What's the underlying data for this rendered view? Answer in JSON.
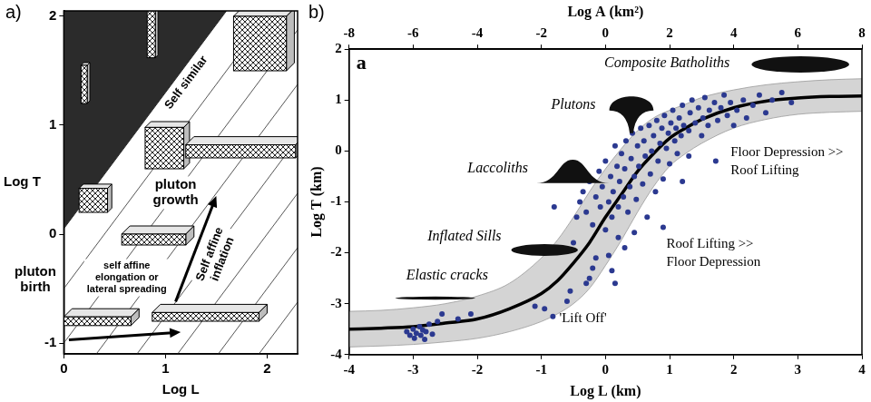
{
  "chart_data": [
    {
      "type": "line",
      "panel_label": "a)",
      "x_label": "Log L",
      "y_label": "Log T",
      "xlim": [
        0,
        2.3
      ],
      "xticks": [
        0,
        1,
        2
      ],
      "ylim": [
        -1.1,
        2.05
      ],
      "yticks": [
        -1,
        0,
        1,
        2
      ],
      "grid": false,
      "region": {
        "label": "Self similar",
        "color": "#2b2b2b",
        "boundary": {
          "x": [
            0,
            1.6
          ],
          "y": [
            0.05,
            2.05
          ]
        }
      },
      "hatch_lines": {
        "color": "#555555",
        "lines": [
          {
            "x": [
              0,
              2.3
            ],
            "y": [
              -0.5,
              2.375
            ]
          },
          {
            "x": [
              0,
              2.3
            ],
            "y": [
              -1.0,
              1.875
            ]
          },
          {
            "x": [
              0,
              2.3
            ],
            "y": [
              -1.5,
              1.375
            ]
          },
          {
            "x": [
              0,
              2.3
            ],
            "y": [
              -2.0,
              0.875
            ]
          },
          {
            "x": [
              0,
              2.3
            ],
            "y": [
              -2.5,
              0.375
            ]
          },
          {
            "x": [
              0,
              2.3
            ],
            "y": [
              -3.0,
              -0.125
            ]
          },
          {
            "x": [
              0,
              2.3
            ],
            "y": [
              -3.5,
              -0.625
            ]
          }
        ]
      },
      "boxes": [
        {
          "x": [
            0.82,
            0.9
          ],
          "y": [
            1.62,
            2.05
          ]
        },
        {
          "x": [
            0.17,
            0.23
          ],
          "y": [
            1.2,
            1.55
          ]
        },
        {
          "x": [
            1.67,
            2.19
          ],
          "y": [
            1.5,
            2.0
          ]
        },
        {
          "x": [
            0.8,
            1.18
          ],
          "y": [
            0.6,
            0.98
          ]
        },
        {
          "x": [
            0.15,
            0.43
          ],
          "y": [
            0.2,
            0.42
          ]
        },
        {
          "x": [
            1.2,
            2.28
          ],
          "y": [
            0.7,
            0.82
          ]
        },
        {
          "x": [
            0.57,
            1.2
          ],
          "y": [
            -0.1,
            0.0
          ]
        },
        {
          "x": [
            0.87,
            1.92
          ],
          "y": [
            -0.8,
            -0.72
          ]
        },
        {
          "x": [
            0.0,
            0.66
          ],
          "y": [
            -0.84,
            -0.76
          ]
        }
      ],
      "arrows": [
        {
          "from": [
            0.05,
            -0.97
          ],
          "to": [
            1.15,
            -0.9
          ]
        },
        {
          "from": [
            1.1,
            -0.62
          ],
          "to": [
            1.5,
            0.35
          ],
          "label": "Self affine\ninflation"
        }
      ],
      "stage_labels": [
        {
          "text": "pluton\nbirth",
          "x": -0.28,
          "y": -0.42
        },
        {
          "text": "pluton\ngrowth",
          "x": 1.1,
          "y": 0.38
        }
      ],
      "annotations": [
        {
          "text": "self affine\nelongation or\nlateral spreading",
          "x": 0.62,
          "y": -0.4
        }
      ]
    },
    {
      "type": "scatter",
      "panel_label": "b)",
      "inner_label": "a",
      "x_label": "Log L (km)",
      "y_label": "Log T (km)",
      "x2_label": "Log A (km²)",
      "xlim": [
        -4,
        4
      ],
      "xticks": [
        -4,
        -3,
        -2,
        -1,
        0,
        1,
        2,
        3,
        4
      ],
      "x2lim": [
        -8,
        8
      ],
      "x2ticks": [
        -8,
        -6,
        -4,
        -2,
        0,
        2,
        4,
        6,
        8
      ],
      "ylim": [
        -4,
        2
      ],
      "yticks": [
        -4,
        -3,
        -2,
        -1,
        0,
        1,
        2
      ],
      "grid": false,
      "curve": {
        "color": "#000000",
        "x": [
          -4,
          -3.5,
          -3,
          -2.5,
          -2,
          -1.5,
          -1,
          -0.75,
          -0.5,
          -0.25,
          0,
          0.25,
          0.5,
          0.75,
          1,
          1.25,
          1.5,
          2,
          2.5,
          3,
          3.5,
          4
        ],
        "y": [
          -3.5,
          -3.48,
          -3.45,
          -3.38,
          -3.3,
          -3.1,
          -2.8,
          -2.55,
          -2.2,
          -1.8,
          -1.3,
          -0.85,
          -0.4,
          -0.05,
          0.25,
          0.45,
          0.62,
          0.85,
          0.98,
          1.04,
          1.07,
          1.08
        ]
      },
      "band": {
        "color": "#d4d4d4",
        "x": [
          -4,
          -3.5,
          -3,
          -2.5,
          -2,
          -1.5,
          -1,
          -0.75,
          -0.5,
          -0.25,
          0,
          0.25,
          0.5,
          0.75,
          1,
          1.25,
          1.5,
          2,
          2.5,
          3,
          3.5,
          4
        ],
        "upper": [
          -3.15,
          -3.13,
          -3.08,
          -3.0,
          -2.85,
          -2.6,
          -2.1,
          -1.75,
          -1.3,
          -0.8,
          -0.35,
          0.05,
          0.4,
          0.65,
          0.8,
          0.92,
          1.05,
          1.2,
          1.3,
          1.36,
          1.4,
          1.42
        ],
        "lower": [
          -3.85,
          -3.83,
          -3.8,
          -3.75,
          -3.68,
          -3.55,
          -3.35,
          -3.2,
          -3.0,
          -2.7,
          -2.25,
          -1.75,
          -1.2,
          -0.7,
          -0.3,
          -0.05,
          0.15,
          0.45,
          0.62,
          0.72,
          0.76,
          0.78
        ]
      },
      "points": {
        "color": "#2b3990",
        "x": [
          -3.1,
          -3.05,
          -3.0,
          -2.98,
          -2.95,
          -2.9,
          -2.88,
          -2.85,
          -2.82,
          -2.8,
          -2.75,
          -2.7,
          -2.62,
          -2.55,
          -2.3,
          -2.1,
          -1.1,
          -0.95,
          -0.82,
          -0.6,
          -0.55,
          -0.3,
          -0.25,
          -0.2,
          0.05,
          0.1,
          0.15,
          0.2,
          0.3,
          -0.8,
          -0.5,
          -0.45,
          -0.4,
          -0.35,
          -0.3,
          -0.25,
          -0.2,
          -0.15,
          -0.1,
          -0.08,
          -0.05,
          0,
          0,
          0.05,
          0.08,
          0.1,
          0.12,
          0.15,
          0.18,
          0.2,
          0.22,
          0.25,
          0.28,
          0.3,
          0.32,
          0.35,
          0.38,
          0.4,
          0.42,
          0.45,
          0.48,
          0.5,
          0.52,
          0.55,
          0.58,
          0.6,
          0.62,
          0.65,
          0.68,
          0.7,
          0.72,
          0.75,
          0.78,
          0.8,
          0.82,
          0.85,
          0.88,
          0.9,
          0.92,
          0.95,
          0.98,
          1.0,
          1.02,
          1.05,
          1.08,
          1.1,
          1.12,
          1.15,
          1.18,
          1.2,
          1.22,
          1.3,
          1.32,
          1.35,
          1.4,
          1.45,
          1.5,
          1.52,
          1.55,
          1.6,
          1.62,
          1.7,
          1.72,
          1.75,
          1.8,
          1.85,
          1.9,
          1.95,
          2.0,
          2.05,
          2.15,
          2.2,
          2.3,
          2.4,
          2.5,
          2.6,
          2.75,
          2.9,
          1.2,
          1.3,
          0.9,
          0.45,
          -0.15
        ],
        "y": [
          -3.55,
          -3.62,
          -3.5,
          -3.68,
          -3.58,
          -3.45,
          -3.62,
          -3.52,
          -3.7,
          -3.55,
          -3.4,
          -3.6,
          -3.35,
          -3.2,
          -3.3,
          -3.2,
          -3.05,
          -3.1,
          -3.25,
          -2.95,
          -2.75,
          -2.6,
          -2.5,
          -2.3,
          -2.05,
          -2.35,
          -2.6,
          -1.7,
          -1.9,
          -1.1,
          -1.8,
          -1.3,
          -1.0,
          -0.8,
          -1.2,
          -0.6,
          -1.45,
          -0.9,
          -0.4,
          -1.1,
          -0.7,
          -1.55,
          -0.2,
          -1.0,
          -0.5,
          -1.3,
          -0.8,
          0.1,
          -0.3,
          -1.1,
          -0.6,
          -0.05,
          -0.9,
          -0.35,
          0.2,
          -1.2,
          -0.7,
          -0.15,
          0.35,
          -0.5,
          -0.95,
          0.1,
          -0.3,
          0.45,
          -0.65,
          0.2,
          -0.1,
          -1.3,
          0.5,
          -0.45,
          0.0,
          0.3,
          -0.8,
          0.6,
          -0.2,
          0.15,
          0.45,
          -0.55,
          0.7,
          0.05,
          0.35,
          -0.25,
          0.55,
          0.8,
          0.2,
          0.45,
          -0.05,
          0.65,
          0.3,
          0.9,
          0.5,
          0.4,
          0.75,
          1.0,
          0.55,
          0.85,
          0.3,
          0.65,
          1.05,
          0.5,
          0.8,
          0.95,
          -0.2,
          0.6,
          0.85,
          1.1,
          0.7,
          0.95,
          0.5,
          0.8,
          1.0,
          0.65,
          0.9,
          1.1,
          0.75,
          1.0,
          1.15,
          0.95,
          -0.6,
          -0.1,
          -1.5,
          -1.6,
          -2.1
        ]
      },
      "shapes": [
        {
          "kind": "ellipse",
          "label": "Composite Batholiths",
          "label_at": [
            0.96,
            1.72
          ],
          "x": [
            2.28,
            3.8
          ],
          "y": [
            1.54,
            1.86
          ]
        },
        {
          "kind": "mushroom",
          "label": "Plutons",
          "label_at": [
            -0.5,
            0.9
          ],
          "x": [
            0.06,
            0.75
          ],
          "y": [
            0.35,
            1.09
          ]
        },
        {
          "kind": "dome",
          "label": "Laccoliths",
          "label_at": [
            -1.68,
            -0.35
          ],
          "x": [
            -1.08,
            0.06
          ],
          "y": [
            -0.63,
            -0.17
          ]
        },
        {
          "kind": "lens",
          "label": "Inflated Sills",
          "label_at": [
            -2.2,
            -1.68
          ],
          "x": [
            -1.47,
            -0.43
          ],
          "y": [
            -2.06,
            -1.83
          ]
        },
        {
          "kind": "crack",
          "label": "Elastic cracks",
          "label_at": [
            -2.47,
            -2.45
          ],
          "x": [
            -3.28,
            -2.03
          ],
          "y": [
            -2.92,
            -2.86
          ]
        }
      ],
      "annotations": [
        {
          "text": "Floor Depression >>\nRoof Lifting",
          "x": 1.95,
          "y": -0.2
        },
        {
          "text": "Roof Lifting >>\nFloor Depression",
          "x": 0.95,
          "y": -2.0
        },
        {
          "text": "'Lift Off'",
          "x": -0.72,
          "y": -3.3
        }
      ]
    }
  ]
}
